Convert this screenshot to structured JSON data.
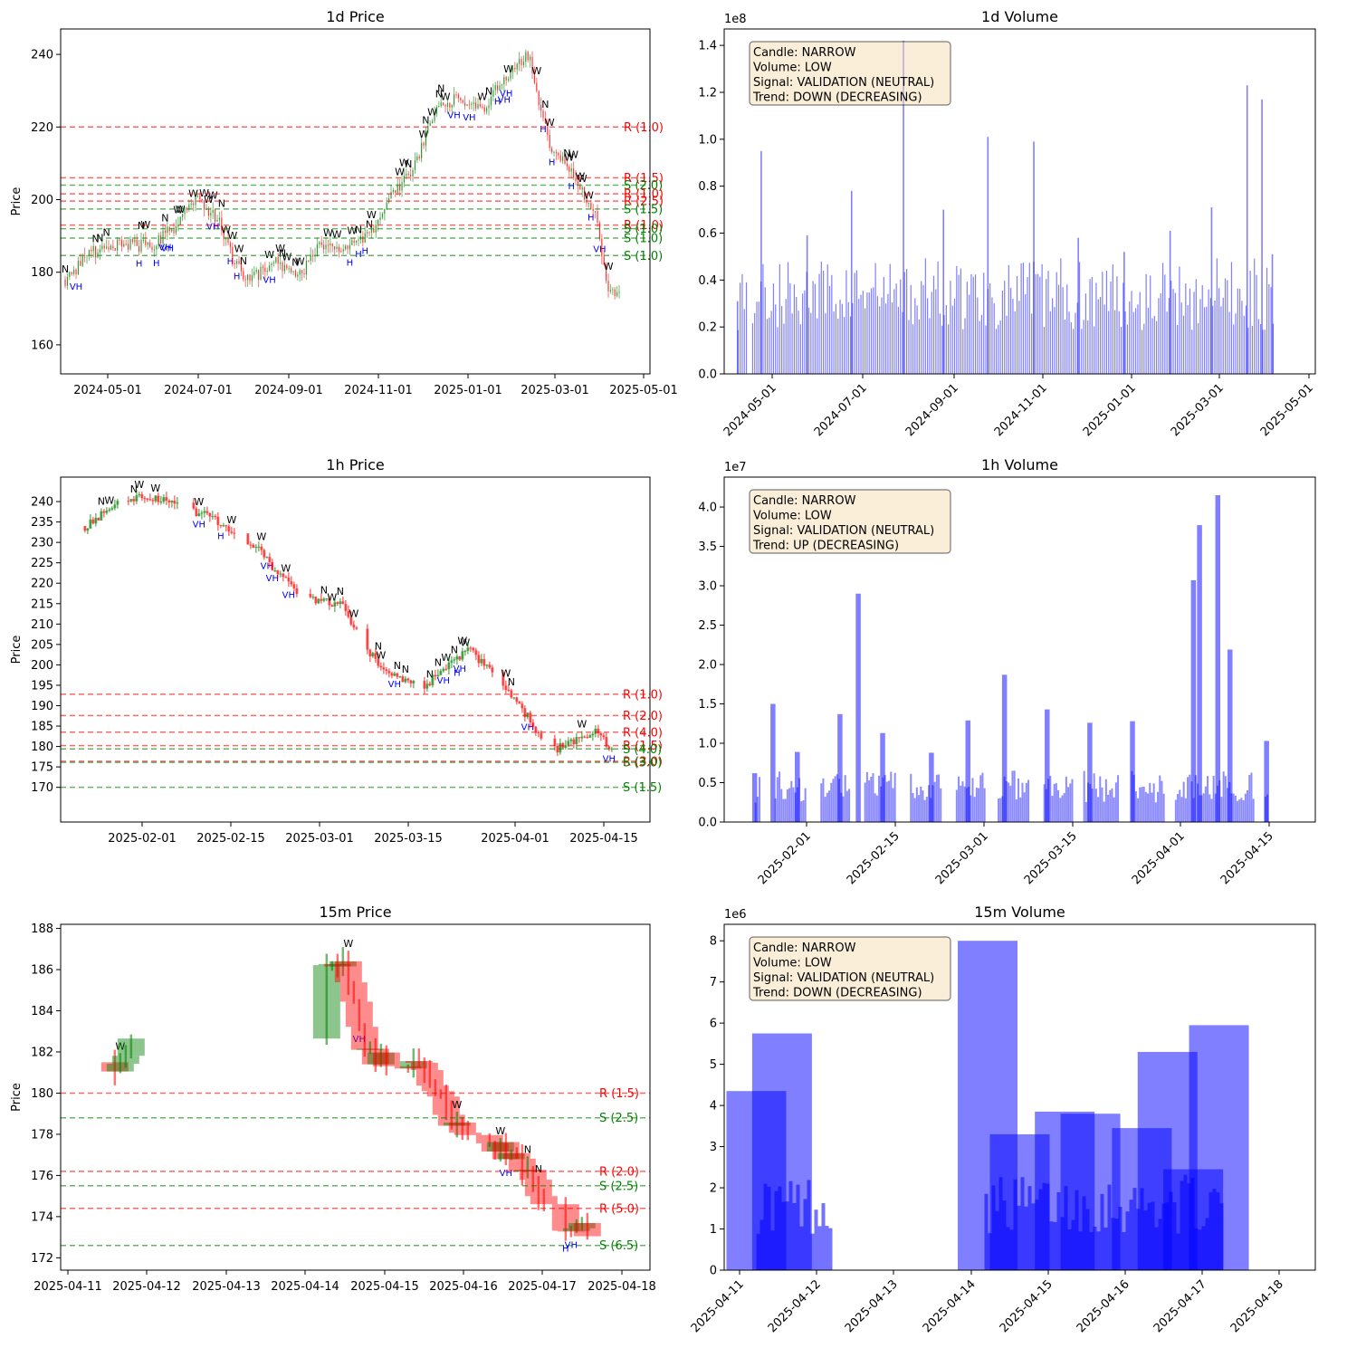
{
  "panels": [
    {
      "id": "p1d",
      "title": "1d Price",
      "ylabel": "Price",
      "x_ticks": [
        "2024-05-01",
        "2024-07-01",
        "2024-09-01",
        "2024-11-01",
        "2025-01-01",
        "2025-03-01",
        "2025-05-01"
      ],
      "y_ticks": [
        "160",
        "180",
        "200",
        "220",
        "240"
      ]
    },
    {
      "id": "v1d",
      "title": "1d Volume",
      "scale_label": "1e8",
      "x_ticks": [
        "2024-05-01",
        "2024-07-01",
        "2024-09-01",
        "2024-11-01",
        "2025-01-01",
        "2025-03-01",
        "2025-05-01"
      ],
      "y_ticks": [
        "0.0",
        "0.2",
        "0.4",
        "0.6",
        "0.8",
        "1.0",
        "1.2",
        "1.4"
      ],
      "info": [
        "Candle: NARROW",
        "Volume: LOW",
        "Signal: VALIDATION (NEUTRAL)",
        "Trend: DOWN (DECREASING)"
      ]
    },
    {
      "id": "p1h",
      "title": "1h Price",
      "ylabel": "Price",
      "x_ticks": [
        "2025-02-01",
        "2025-02-15",
        "2025-03-01",
        "2025-03-15",
        "2025-04-01",
        "2025-04-15"
      ],
      "y_ticks": [
        "170",
        "175",
        "180",
        "185",
        "190",
        "195",
        "200",
        "205",
        "210",
        "215",
        "220",
        "225",
        "230",
        "235",
        "240"
      ]
    },
    {
      "id": "v1h",
      "title": "1h Volume",
      "scale_label": "1e7",
      "x_ticks": [
        "2025-02-01",
        "2025-02-15",
        "2025-03-01",
        "2025-03-15",
        "2025-04-01",
        "2025-04-15"
      ],
      "y_ticks": [
        "0.0",
        "0.5",
        "1.0",
        "1.5",
        "2.0",
        "2.5",
        "3.0",
        "3.5",
        "4.0"
      ],
      "info": [
        "Candle: NARROW",
        "Volume: LOW",
        "Signal: VALIDATION (NEUTRAL)",
        "Trend: UP (DECREASING)"
      ]
    },
    {
      "id": "p15",
      "title": "15m Price",
      "ylabel": "Price",
      "x_ticks": [
        "2025-04-11",
        "2025-04-12",
        "2025-04-13",
        "2025-04-14",
        "2025-04-15",
        "2025-04-16",
        "2025-04-17",
        "2025-04-18"
      ],
      "y_ticks": [
        "172",
        "174",
        "176",
        "178",
        "180",
        "182",
        "184",
        "186",
        "188"
      ]
    },
    {
      "id": "v15",
      "title": "15m Volume",
      "scale_label": "1e6",
      "x_ticks": [
        "2025-04-11",
        "2025-04-12",
        "2025-04-13",
        "2025-04-14",
        "2025-04-15",
        "2025-04-16",
        "2025-04-17",
        "2025-04-18"
      ],
      "y_ticks": [
        "0",
        "1",
        "2",
        "3",
        "4",
        "5",
        "6",
        "7",
        "8"
      ],
      "info": [
        "Candle: NARROW",
        "Volume: LOW",
        "Signal: VALIDATION (NEUTRAL)",
        "Trend: DOWN (DECREASING)"
      ]
    }
  ],
  "colors": {
    "up": "#008000",
    "down": "#ff0000",
    "volume": "#0000ff",
    "resistance": "#ff0000",
    "support": "#008000",
    "marker_vh": "#0000ff",
    "marker_w": "#000000",
    "info_box_fill": "#f5deb3",
    "info_box_edge": "#7f7f7f"
  },
  "chart_data": [
    {
      "panel": "p1d",
      "type": "line",
      "title": "1d Price",
      "ylabel": "Price",
      "ylim": [
        152,
        247
      ],
      "x_range": [
        "2024-04-12",
        "2025-05-06"
      ],
      "x": [
        "2024-04-15",
        "2024-05-01",
        "2024-05-20",
        "2024-06-10",
        "2024-06-25",
        "2024-07-10",
        "2024-07-25",
        "2024-08-05",
        "2024-08-15",
        "2024-09-01",
        "2024-09-15",
        "2024-10-01",
        "2024-10-15",
        "2024-11-01",
        "2024-11-15",
        "2024-12-01",
        "2024-12-15",
        "2025-01-01",
        "2025-01-15",
        "2025-02-01",
        "2025-02-15",
        "2025-03-01",
        "2025-03-15",
        "2025-04-01",
        "2025-04-08",
        "2025-04-17"
      ],
      "close": [
        178,
        185,
        188,
        187,
        192,
        200,
        195,
        182,
        178,
        183,
        178,
        188,
        187,
        190,
        200,
        208,
        225,
        228,
        225,
        234,
        240,
        214,
        208,
        195,
        174,
        175
      ],
      "support_resistance": [
        {
          "kind": "R",
          "price": 220,
          "label": "R (1.0)"
        },
        {
          "kind": "R",
          "price": 206,
          "label": "R (1.5)"
        },
        {
          "kind": "S",
          "price": 204,
          "label": "S (2.0)"
        },
        {
          "kind": "R",
          "price": 201.6,
          "label": "R (1.0)"
        },
        {
          "kind": "R",
          "price": 199.6,
          "label": "R (2.5)"
        },
        {
          "kind": "S",
          "price": 197.4,
          "label": "S (1.5)"
        },
        {
          "kind": "R",
          "price": 193,
          "label": "R (1.0)"
        },
        {
          "kind": "S",
          "price": 192,
          "label": "S (1.0)"
        },
        {
          "kind": "S",
          "price": 189.4,
          "label": "S (1.0)"
        },
        {
          "kind": "S",
          "price": 184.6,
          "label": "S (1.0)"
        }
      ]
    },
    {
      "panel": "v1d",
      "type": "bar",
      "title": "1d Volume",
      "ylim": [
        0,
        1.47
      ],
      "y_scale": 100000000.0,
      "x_range": [
        "2024-04-06",
        "2025-05-10"
      ],
      "x": [
        "2024-04-15",
        "2024-05-01",
        "2024-06-01",
        "2024-07-01",
        "2024-08-05",
        "2024-09-01",
        "2024-10-01",
        "2024-11-01",
        "2024-12-01",
        "2025-01-01",
        "2025-02-01",
        "2025-03-01",
        "2025-03-25",
        "2025-04-04",
        "2025-04-11"
      ],
      "values": [
        0.31,
        0.95,
        0.59,
        0.78,
        1.42,
        0.7,
        1.01,
        0.99,
        0.58,
        0.52,
        0.61,
        0.71,
        1.23,
        1.17,
        0.51
      ]
    },
    {
      "panel": "p1h",
      "type": "line",
      "title": "1h Price",
      "ylabel": "Price",
      "ylim": [
        161.5,
        246
      ],
      "x_range": [
        "2025-01-16",
        "2025-04-23"
      ],
      "x": [
        "2025-01-20",
        "2025-01-27",
        "2025-02-03",
        "2025-02-10",
        "2025-02-17",
        "2025-02-24",
        "2025-03-03",
        "2025-03-10",
        "2025-03-17",
        "2025-03-24",
        "2025-03-31",
        "2025-04-07",
        "2025-04-14",
        "2025-04-17"
      ],
      "close": [
        234,
        241,
        240,
        236,
        229,
        217,
        215,
        198,
        195,
        204,
        193,
        179,
        184,
        178
      ],
      "support_resistance": [
        {
          "kind": "R",
          "price": 192.8,
          "label": "R (1.0)"
        },
        {
          "kind": "R",
          "price": 187.6,
          "label": "R (2.0)"
        },
        {
          "kind": "R",
          "price": 183.5,
          "label": "R (4.0)"
        },
        {
          "kind": "R",
          "price": 180.2,
          "label": "R (1.5)"
        },
        {
          "kind": "S",
          "price": 179.4,
          "label": "S (4.0)"
        },
        {
          "kind": "R",
          "price": 176.4,
          "label": "R (3.0)"
        },
        {
          "kind": "S",
          "price": 176.1,
          "label": "S (3.0)"
        },
        {
          "kind": "S",
          "price": 170,
          "label": "S (1.5)"
        }
      ]
    },
    {
      "panel": "v1h",
      "type": "bar",
      "title": "1h Volume",
      "ylim": [
        0,
        4.38
      ],
      "y_scale": 10000000.0,
      "x_range": [
        "2025-01-16",
        "2025-04-23"
      ],
      "x": [
        "2025-01-21",
        "2025-01-24",
        "2025-01-28",
        "2025-02-04",
        "2025-02-07",
        "2025-02-11",
        "2025-02-19",
        "2025-02-25",
        "2025-03-03",
        "2025-03-10",
        "2025-03-17",
        "2025-03-24",
        "2025-04-03",
        "2025-04-04",
        "2025-04-07",
        "2025-04-09",
        "2025-04-15"
      ],
      "values": [
        0.62,
        1.5,
        0.89,
        1.37,
        2.9,
        1.13,
        0.88,
        1.29,
        1.87,
        1.43,
        1.26,
        1.28,
        3.07,
        3.77,
        4.15,
        2.19,
        1.03
      ]
    },
    {
      "panel": "p15",
      "type": "line",
      "title": "15m Price",
      "ylabel": "Price",
      "ylim": [
        171.4,
        188.2
      ],
      "x_range": [
        "2025-04-10T17:00",
        "2025-04-18T10:00"
      ],
      "x": [
        "2025-04-11T10:00",
        "2025-04-11T16:00",
        "2025-04-11T20:00",
        "2025-04-14T10:00",
        "2025-04-14T16:00",
        "2025-04-15T10:00",
        "2025-04-15T20:00",
        "2025-04-16T10:00",
        "2025-04-16T20:00",
        "2025-04-17T06:00",
        "2025-04-17T16:00"
      ],
      "close": [
        181.5,
        182.5,
        184.2,
        186.5,
        182.0,
        181.0,
        178.5,
        177.5,
        176.0,
        173.5,
        173.4
      ],
      "support_resistance": [
        {
          "kind": "R",
          "price": 180.0,
          "label": "R (1.5)"
        },
        {
          "kind": "S",
          "price": 178.8,
          "label": "S (2.5)"
        },
        {
          "kind": "R",
          "price": 176.2,
          "label": "R (2.0)"
        },
        {
          "kind": "S",
          "price": 175.5,
          "label": "S (2.5)"
        },
        {
          "kind": "R",
          "price": 174.4,
          "label": "R (5.0)"
        },
        {
          "kind": "S",
          "price": 172.6,
          "label": "S (6.5)"
        }
      ]
    },
    {
      "panel": "v15",
      "type": "bar",
      "title": "15m Volume",
      "ylim": [
        0,
        8.4
      ],
      "y_scale": 1000000.0,
      "x_range": [
        "2025-04-10T20:00",
        "2025-04-18T12:00"
      ],
      "x": [
        "2025-04-11T06:00",
        "2025-04-11T14:00",
        "2025-04-14T06:00",
        "2025-04-14T16:00",
        "2025-04-15T06:00",
        "2025-04-15T14:00",
        "2025-04-16T06:00",
        "2025-04-16T14:00",
        "2025-04-16T22:00",
        "2025-04-17T06:00"
      ],
      "values": [
        4.35,
        5.75,
        8.0,
        3.3,
        3.85,
        3.8,
        3.45,
        5.3,
        2.45,
        5.95
      ]
    }
  ]
}
